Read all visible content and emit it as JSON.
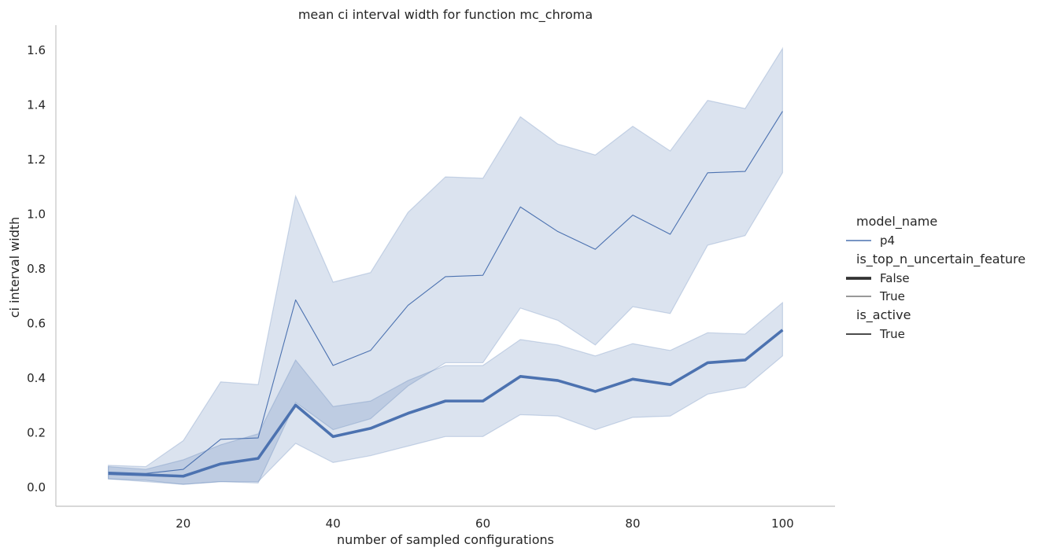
{
  "chart_data": {
    "type": "line",
    "title": "mean ci interval width for function mc_chroma",
    "xlabel": "number of sampled configurations",
    "ylabel": "ci interval width",
    "xlim": [
      3,
      107
    ],
    "ylim": [
      -0.07,
      1.69
    ],
    "xticks": [
      20,
      40,
      60,
      80,
      100
    ],
    "yticks": [
      0.0,
      0.2,
      0.4,
      0.6,
      0.8,
      1.0,
      1.2,
      1.4,
      1.6
    ],
    "ytick_labels": [
      "0.0",
      "0.2",
      "0.4",
      "0.6",
      "0.8",
      "1.0",
      "1.2",
      "1.4",
      "1.6"
    ],
    "grid": false,
    "legend_position": "right",
    "colors": {
      "series": "#4c72b0",
      "band": "#4c72b0",
      "axis": "#cccccc",
      "text": "#262626"
    },
    "x": [
      10,
      15,
      20,
      25,
      30,
      35,
      40,
      45,
      50,
      55,
      60,
      65,
      70,
      75,
      80,
      85,
      90,
      95,
      100
    ],
    "series": [
      {
        "name": "True",
        "style": "thin",
        "values": [
          0.055,
          0.05,
          0.065,
          0.175,
          0.18,
          0.685,
          0.445,
          0.5,
          0.665,
          0.77,
          0.775,
          1.025,
          0.935,
          0.87,
          0.995,
          0.925,
          1.15,
          1.155,
          1.375
        ],
        "ci_low": [
          0.03,
          0.02,
          0.01,
          0.02,
          0.015,
          0.31,
          0.21,
          0.25,
          0.37,
          0.455,
          0.455,
          0.655,
          0.61,
          0.52,
          0.66,
          0.635,
          0.885,
          0.92,
          1.15
        ],
        "ci_high": [
          0.08,
          0.075,
          0.17,
          0.385,
          0.375,
          1.065,
          0.75,
          0.785,
          1.005,
          1.135,
          1.13,
          1.355,
          1.255,
          1.215,
          1.32,
          1.23,
          1.415,
          1.385,
          1.605
        ]
      },
      {
        "name": "False",
        "style": "thick",
        "values": [
          0.05,
          0.045,
          0.04,
          0.085,
          0.105,
          0.3,
          0.185,
          0.215,
          0.27,
          0.315,
          0.315,
          0.405,
          0.39,
          0.35,
          0.395,
          0.375,
          0.455,
          0.465,
          0.575
        ],
        "ci_low": [
          0.03,
          0.025,
          0.01,
          0.02,
          0.02,
          0.16,
          0.09,
          0.115,
          0.15,
          0.185,
          0.185,
          0.265,
          0.26,
          0.21,
          0.255,
          0.26,
          0.34,
          0.365,
          0.48
        ],
        "ci_high": [
          0.075,
          0.065,
          0.1,
          0.155,
          0.195,
          0.465,
          0.295,
          0.315,
          0.39,
          0.445,
          0.445,
          0.54,
          0.52,
          0.48,
          0.525,
          0.5,
          0.565,
          0.56,
          0.675
        ]
      }
    ],
    "legend": [
      {
        "title": "model_name",
        "entries": [
          {
            "label": "p4",
            "kind": "line-color"
          }
        ]
      },
      {
        "title": "is_top_n_uncertain_feature",
        "entries": [
          {
            "label": "False",
            "kind": "line-thick"
          },
          {
            "label": "True",
            "kind": "line-thin"
          }
        ]
      },
      {
        "title": "is_active",
        "entries": [
          {
            "label": "True",
            "kind": "line-dark"
          }
        ]
      }
    ]
  }
}
